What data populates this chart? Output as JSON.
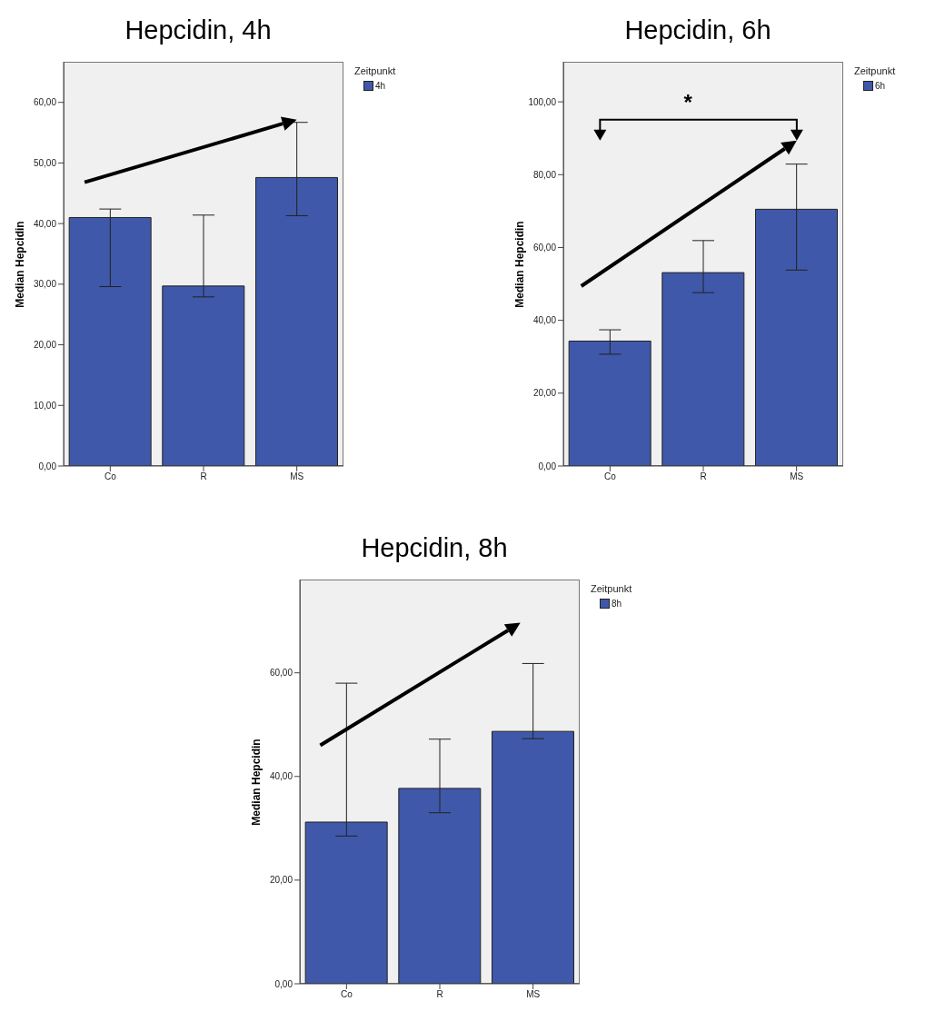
{
  "chart_data": [
    {
      "type": "bar",
      "title": "Hepcidin, 4h",
      "ylabel": "Median Hepcidin",
      "legend_title": "Zeitpunkt",
      "legend": "top right",
      "categories": [
        "Co",
        "R",
        "MS"
      ],
      "series": [
        {
          "name": "4h",
          "color": "#3f58a9",
          "values": [
            41.0,
            29.7,
            47.6
          ],
          "errors": [
            [
              29.6,
              42.4
            ],
            [
              27.9,
              41.4
            ],
            [
              41.3,
              56.7
            ]
          ]
        }
      ],
      "ylim": [
        0,
        66.7
      ],
      "yticks": [
        {
          "value": 0,
          "label": "0,00"
        },
        {
          "value": 10,
          "label": "10,00"
        },
        {
          "value": 20,
          "label": "20,00"
        },
        {
          "value": 30,
          "label": "30,00"
        },
        {
          "value": 40,
          "label": "40,00"
        },
        {
          "value": 50,
          "label": "50,00"
        },
        {
          "value": 60,
          "label": "60,00"
        }
      ]
    },
    {
      "type": "bar",
      "title": "Hepcidin, 6h",
      "ylabel": "Median Hepcidin",
      "legend_title": "Zeitpunkt",
      "legend": "top right",
      "categories": [
        "Co",
        "R",
        "MS"
      ],
      "series": [
        {
          "name": "6h",
          "color": "#3f58a9",
          "values": [
            34.3,
            53.1,
            70.5
          ],
          "errors": [
            [
              30.7,
              37.4
            ],
            [
              47.6,
              61.9
            ],
            [
              53.8,
              82.9
            ]
          ]
        }
      ],
      "ylim": [
        0,
        111
      ],
      "yticks": [
        {
          "value": 0,
          "label": "0,00"
        },
        {
          "value": 20,
          "label": "20,00"
        },
        {
          "value": 40,
          "label": "40,00"
        },
        {
          "value": 60,
          "label": "60,00"
        },
        {
          "value": 80,
          "label": "80,00"
        },
        {
          "value": 100,
          "label": "100,00"
        }
      ],
      "annotations": [
        "*"
      ]
    },
    {
      "type": "bar",
      "title": "Hepcidin, 8h",
      "ylabel": "Median Hepcidin",
      "legend_title": "Zeitpunkt",
      "legend": "top right",
      "categories": [
        "Co",
        "R",
        "MS"
      ],
      "series": [
        {
          "name": "8h",
          "color": "#3f58a9",
          "values": [
            31.2,
            37.7,
            48.7
          ],
          "errors": [
            [
              28.5,
              58.0
            ],
            [
              33.0,
              47.2
            ],
            [
              47.3,
              61.8
            ]
          ]
        }
      ],
      "ylim": [
        0,
        78
      ],
      "yticks": [
        {
          "value": 0,
          "label": "0,00"
        },
        {
          "value": 20,
          "label": "20,00"
        },
        {
          "value": 40,
          "label": "40,00"
        },
        {
          "value": 60,
          "label": "60,00"
        }
      ]
    }
  ]
}
